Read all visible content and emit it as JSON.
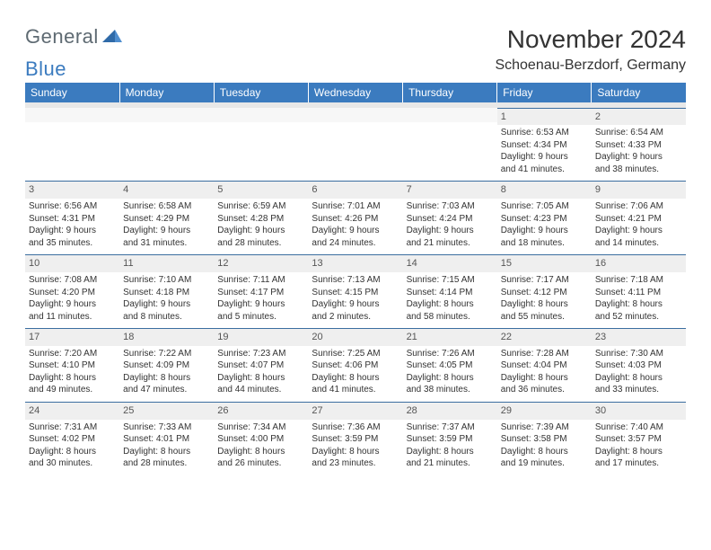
{
  "logo": {
    "general": "General",
    "blue": "Blue"
  },
  "header": {
    "month_title": "November 2024",
    "location": "Schoenau-Berzdorf, Germany"
  },
  "calendar": {
    "header_bg": "#3b7bbf",
    "header_fg": "#ffffff",
    "daynum_bg": "#efefef",
    "cell_border": "#3b6ea0",
    "day_labels": [
      "Sunday",
      "Monday",
      "Tuesday",
      "Wednesday",
      "Thursday",
      "Friday",
      "Saturday"
    ],
    "weeks": [
      [
        null,
        null,
        null,
        null,
        null,
        {
          "n": "1",
          "sr": "Sunrise: 6:53 AM",
          "ss": "Sunset: 4:34 PM",
          "d1": "Daylight: 9 hours",
          "d2": "and 41 minutes."
        },
        {
          "n": "2",
          "sr": "Sunrise: 6:54 AM",
          "ss": "Sunset: 4:33 PM",
          "d1": "Daylight: 9 hours",
          "d2": "and 38 minutes."
        }
      ],
      [
        {
          "n": "3",
          "sr": "Sunrise: 6:56 AM",
          "ss": "Sunset: 4:31 PM",
          "d1": "Daylight: 9 hours",
          "d2": "and 35 minutes."
        },
        {
          "n": "4",
          "sr": "Sunrise: 6:58 AM",
          "ss": "Sunset: 4:29 PM",
          "d1": "Daylight: 9 hours",
          "d2": "and 31 minutes."
        },
        {
          "n": "5",
          "sr": "Sunrise: 6:59 AM",
          "ss": "Sunset: 4:28 PM",
          "d1": "Daylight: 9 hours",
          "d2": "and 28 minutes."
        },
        {
          "n": "6",
          "sr": "Sunrise: 7:01 AM",
          "ss": "Sunset: 4:26 PM",
          "d1": "Daylight: 9 hours",
          "d2": "and 24 minutes."
        },
        {
          "n": "7",
          "sr": "Sunrise: 7:03 AM",
          "ss": "Sunset: 4:24 PM",
          "d1": "Daylight: 9 hours",
          "d2": "and 21 minutes."
        },
        {
          "n": "8",
          "sr": "Sunrise: 7:05 AM",
          "ss": "Sunset: 4:23 PM",
          "d1": "Daylight: 9 hours",
          "d2": "and 18 minutes."
        },
        {
          "n": "9",
          "sr": "Sunrise: 7:06 AM",
          "ss": "Sunset: 4:21 PM",
          "d1": "Daylight: 9 hours",
          "d2": "and 14 minutes."
        }
      ],
      [
        {
          "n": "10",
          "sr": "Sunrise: 7:08 AM",
          "ss": "Sunset: 4:20 PM",
          "d1": "Daylight: 9 hours",
          "d2": "and 11 minutes."
        },
        {
          "n": "11",
          "sr": "Sunrise: 7:10 AM",
          "ss": "Sunset: 4:18 PM",
          "d1": "Daylight: 9 hours",
          "d2": "and 8 minutes."
        },
        {
          "n": "12",
          "sr": "Sunrise: 7:11 AM",
          "ss": "Sunset: 4:17 PM",
          "d1": "Daylight: 9 hours",
          "d2": "and 5 minutes."
        },
        {
          "n": "13",
          "sr": "Sunrise: 7:13 AM",
          "ss": "Sunset: 4:15 PM",
          "d1": "Daylight: 9 hours",
          "d2": "and 2 minutes."
        },
        {
          "n": "14",
          "sr": "Sunrise: 7:15 AM",
          "ss": "Sunset: 4:14 PM",
          "d1": "Daylight: 8 hours",
          "d2": "and 58 minutes."
        },
        {
          "n": "15",
          "sr": "Sunrise: 7:17 AM",
          "ss": "Sunset: 4:12 PM",
          "d1": "Daylight: 8 hours",
          "d2": "and 55 minutes."
        },
        {
          "n": "16",
          "sr": "Sunrise: 7:18 AM",
          "ss": "Sunset: 4:11 PM",
          "d1": "Daylight: 8 hours",
          "d2": "and 52 minutes."
        }
      ],
      [
        {
          "n": "17",
          "sr": "Sunrise: 7:20 AM",
          "ss": "Sunset: 4:10 PM",
          "d1": "Daylight: 8 hours",
          "d2": "and 49 minutes."
        },
        {
          "n": "18",
          "sr": "Sunrise: 7:22 AM",
          "ss": "Sunset: 4:09 PM",
          "d1": "Daylight: 8 hours",
          "d2": "and 47 minutes."
        },
        {
          "n": "19",
          "sr": "Sunrise: 7:23 AM",
          "ss": "Sunset: 4:07 PM",
          "d1": "Daylight: 8 hours",
          "d2": "and 44 minutes."
        },
        {
          "n": "20",
          "sr": "Sunrise: 7:25 AM",
          "ss": "Sunset: 4:06 PM",
          "d1": "Daylight: 8 hours",
          "d2": "and 41 minutes."
        },
        {
          "n": "21",
          "sr": "Sunrise: 7:26 AM",
          "ss": "Sunset: 4:05 PM",
          "d1": "Daylight: 8 hours",
          "d2": "and 38 minutes."
        },
        {
          "n": "22",
          "sr": "Sunrise: 7:28 AM",
          "ss": "Sunset: 4:04 PM",
          "d1": "Daylight: 8 hours",
          "d2": "and 36 minutes."
        },
        {
          "n": "23",
          "sr": "Sunrise: 7:30 AM",
          "ss": "Sunset: 4:03 PM",
          "d1": "Daylight: 8 hours",
          "d2": "and 33 minutes."
        }
      ],
      [
        {
          "n": "24",
          "sr": "Sunrise: 7:31 AM",
          "ss": "Sunset: 4:02 PM",
          "d1": "Daylight: 8 hours",
          "d2": "and 30 minutes."
        },
        {
          "n": "25",
          "sr": "Sunrise: 7:33 AM",
          "ss": "Sunset: 4:01 PM",
          "d1": "Daylight: 8 hours",
          "d2": "and 28 minutes."
        },
        {
          "n": "26",
          "sr": "Sunrise: 7:34 AM",
          "ss": "Sunset: 4:00 PM",
          "d1": "Daylight: 8 hours",
          "d2": "and 26 minutes."
        },
        {
          "n": "27",
          "sr": "Sunrise: 7:36 AM",
          "ss": "Sunset: 3:59 PM",
          "d1": "Daylight: 8 hours",
          "d2": "and 23 minutes."
        },
        {
          "n": "28",
          "sr": "Sunrise: 7:37 AM",
          "ss": "Sunset: 3:59 PM",
          "d1": "Daylight: 8 hours",
          "d2": "and 21 minutes."
        },
        {
          "n": "29",
          "sr": "Sunrise: 7:39 AM",
          "ss": "Sunset: 3:58 PM",
          "d1": "Daylight: 8 hours",
          "d2": "and 19 minutes."
        },
        {
          "n": "30",
          "sr": "Sunrise: 7:40 AM",
          "ss": "Sunset: 3:57 PM",
          "d1": "Daylight: 8 hours",
          "d2": "and 17 minutes."
        }
      ]
    ]
  }
}
